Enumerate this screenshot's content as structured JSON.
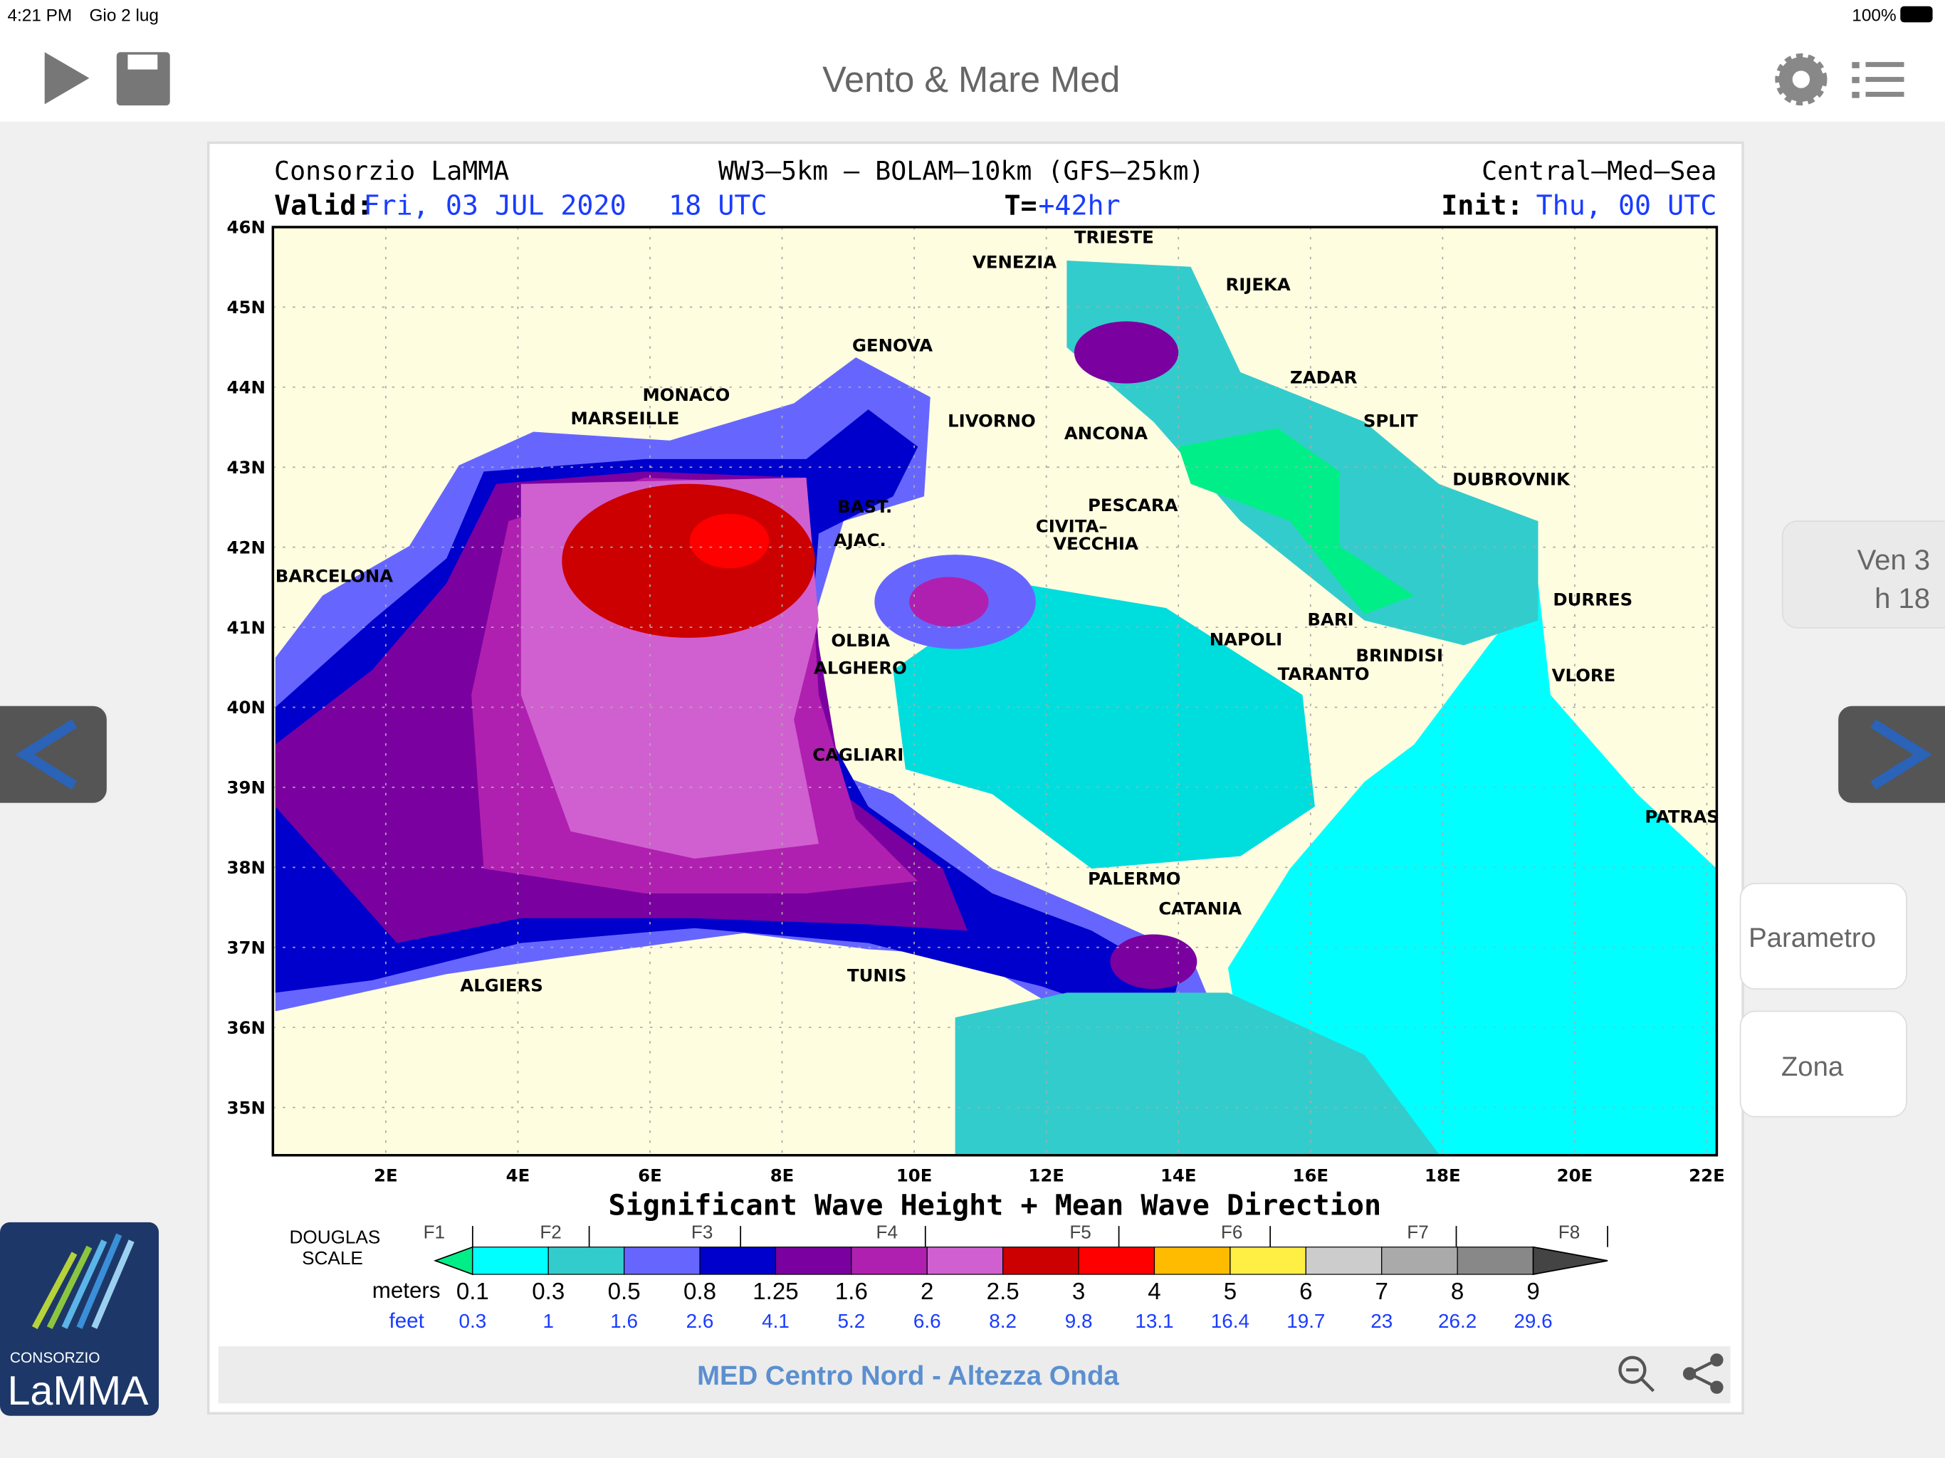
{
  "status_bar": {
    "time": "4:21 PM",
    "date": "Gio 2 lug",
    "battery": "100%"
  },
  "toolbar": {
    "title": "Vento & Mare Med"
  },
  "map": {
    "header": {
      "org": "Consorzio LaMMA",
      "model": "WW3–5km – BOLAM–10km (GFS–25km)",
      "region": "Central–Med–Sea",
      "valid_label": "Valid:",
      "valid_date": "Fri, 03 JUL 2020",
      "valid_hour": "18 UTC",
      "t_label": "T=",
      "t_value": "+42hr",
      "init_label": "Init:",
      "init_value": "Thu, 00 UTC"
    },
    "lat_labels": [
      "46N",
      "45N",
      "44N",
      "43N",
      "42N",
      "41N",
      "40N",
      "39N",
      "38N",
      "37N",
      "36N",
      "35N"
    ],
    "lon_labels": [
      "2E",
      "4E",
      "6E",
      "8E",
      "10E",
      "12E",
      "14E",
      "16E",
      "18E",
      "20E",
      "22E"
    ],
    "cities": [
      "TRIESTE",
      "VENEZIA",
      "RIJEKA",
      "GENOVA",
      "MONACO",
      "MARSEILLE",
      "LIVORNO",
      "ANCONA",
      "ZADAR",
      "SPLIT",
      "DUBROVNIK",
      "BAST.",
      "PESCARA",
      "AJAC.",
      "CIVITA–",
      "VECCHIA",
      "BARCELONA",
      "DURRES",
      "BARI",
      "NAPOLI",
      "BRINDISI",
      "OLBIA",
      "ALGHERO",
      "TARANTO",
      "VLORE",
      "CAGLIARI",
      "PATRAS",
      "PALERMO",
      "CATANIA",
      "TUNIS",
      "ALGIERS"
    ],
    "title": "Significant Wave Height + Mean Wave Direction",
    "legend": {
      "scale_label_1": "DOUGLAS",
      "scale_label_2": "SCALE",
      "forces": [
        "F1",
        "F2",
        "F3",
        "F4",
        "F5",
        "F6",
        "F7",
        "F8"
      ],
      "meters_label": "meters",
      "meters": [
        0.1,
        0.3,
        0.5,
        0.8,
        1.25,
        1.6,
        2,
        2.5,
        3,
        4,
        5,
        6,
        7,
        8,
        9
      ],
      "feet_label": "feet",
      "feet": [
        0.3,
        1,
        1.6,
        2.6,
        4.1,
        5.2,
        6.6,
        8.2,
        9.8,
        13.1,
        16.4,
        19.7,
        23,
        26.2,
        29.6
      ],
      "colors": [
        "#00ffff",
        "#33cccc",
        "#6666ff",
        "#0000cc",
        "#7a00a0",
        "#b020b0",
        "#d060d0",
        "#cc0000",
        "#ff0000",
        "#ffbb00",
        "#ffee44",
        "#cccccc",
        "#aaaaaa",
        "#888888"
      ],
      "low_color": "#00ee88",
      "high_color": "#444444"
    }
  },
  "side": {
    "date": "Ven 3",
    "hour": "h 18",
    "parametro": "Parametro",
    "zona": "Zona"
  },
  "footer": {
    "caption": "MED Centro Nord - Altezza Onda"
  },
  "logo": {
    "org": "CONSORZIO",
    "name": "LaMMA"
  }
}
